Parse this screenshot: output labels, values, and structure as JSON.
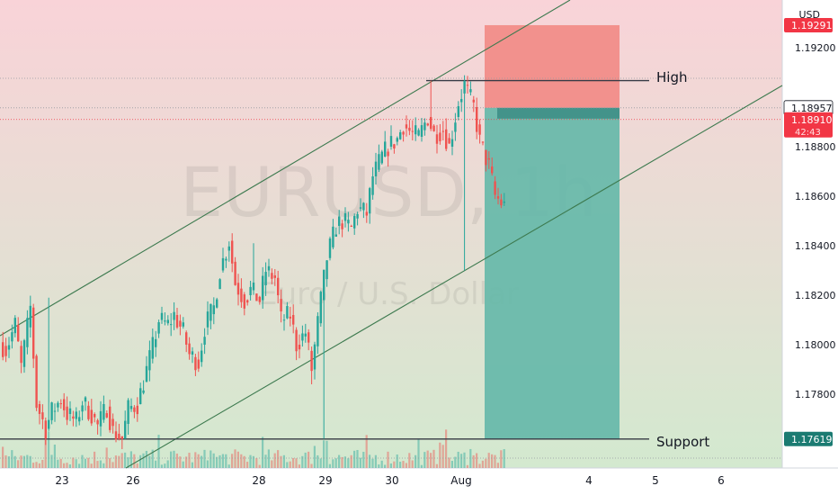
{
  "symbol_watermark": "EURUSD, 1h",
  "description_watermark": "Euro / U.S. Dollar",
  "currency": "USD",
  "price_axis": {
    "ticks": [
      "1.19200",
      "1.18800",
      "1.18600",
      "1.18400",
      "1.18200",
      "1.18000",
      "1.17800"
    ],
    "tags": [
      {
        "text": "1.19291",
        "color": "#f23645",
        "fg": "#ffffff",
        "price": 1.19291
      },
      {
        "text": "1.18957",
        "color": "#ffffff",
        "fg": "#131722",
        "price": 1.18957,
        "border": "#131722"
      },
      {
        "text": "1.18910",
        "color": "#f23645",
        "fg": "#ffffff",
        "price": 1.1891,
        "sub": "42:43"
      },
      {
        "text": "1.17619",
        "color": "#1b7b72",
        "fg": "#ffffff",
        "price": 1.17619
      }
    ]
  },
  "time_axis": {
    "ticks": [
      "23",
      "26",
      "28",
      "29",
      "30",
      "Aug",
      "4",
      "5",
      "6"
    ]
  },
  "annotations": {
    "high_label": "High",
    "support_label": "Support"
  },
  "colors": {
    "up": "#26a69a",
    "down": "#ef5350",
    "stop_zone": "#f28a85",
    "target_zone": "#66b8a9",
    "trendline": "#3d7a4f",
    "bg_top": "#f9d3d8",
    "bg_bottom": "#d3e9cf"
  },
  "chart_data": {
    "type": "candlestick",
    "price_range": [
      1.1759,
      1.1939
    ],
    "channel_upper": [
      {
        "x": "Jul 21",
        "y": 1.1801
      },
      {
        "x": "Jul 31",
        "y": 1.1907
      }
    ],
    "channel_lower": [
      {
        "x": "Jul 26",
        "y": 1.176
      },
      {
        "x": "Aug 5",
        "y": 1.1893
      }
    ],
    "high_level": 1.19067,
    "support_level": 1.17619,
    "position": {
      "stop": 1.19291,
      "entry": 1.18957,
      "target": 1.17619
    },
    "last_price": 1.1891,
    "path": [
      1.1801,
      1.1798,
      1.1808,
      1.1791,
      1.1815,
      1.1776,
      1.1766,
      1.1773,
      1.1778,
      1.1772,
      1.1769,
      1.1777,
      1.1772,
      1.1767,
      1.1775,
      1.1765,
      1.1762,
      1.1774,
      1.1776,
      1.1785,
      1.1799,
      1.181,
      1.1808,
      1.1812,
      1.1805,
      1.1796,
      1.1793,
      1.1807,
      1.1815,
      1.183,
      1.1842,
      1.1825,
      1.1818,
      1.1822,
      1.1818,
      1.183,
      1.1827,
      1.181,
      1.1812,
      1.18,
      1.1805,
      1.179,
      1.1818,
      1.1835,
      1.1848,
      1.185,
      1.1847,
      1.1855,
      1.1853,
      1.1868,
      1.1876,
      1.188,
      1.1883,
      1.1889,
      1.1885,
      1.1884,
      1.1892,
      1.1885,
      1.1887,
      1.188,
      1.1898,
      1.1905,
      1.1896,
      1.1882,
      1.1872,
      1.186,
      1.1856,
      1.1861,
      1.1858,
      1.1863,
      1.1866,
      1.1862,
      1.1869,
      1.1878,
      1.1885,
      1.1891
    ]
  }
}
